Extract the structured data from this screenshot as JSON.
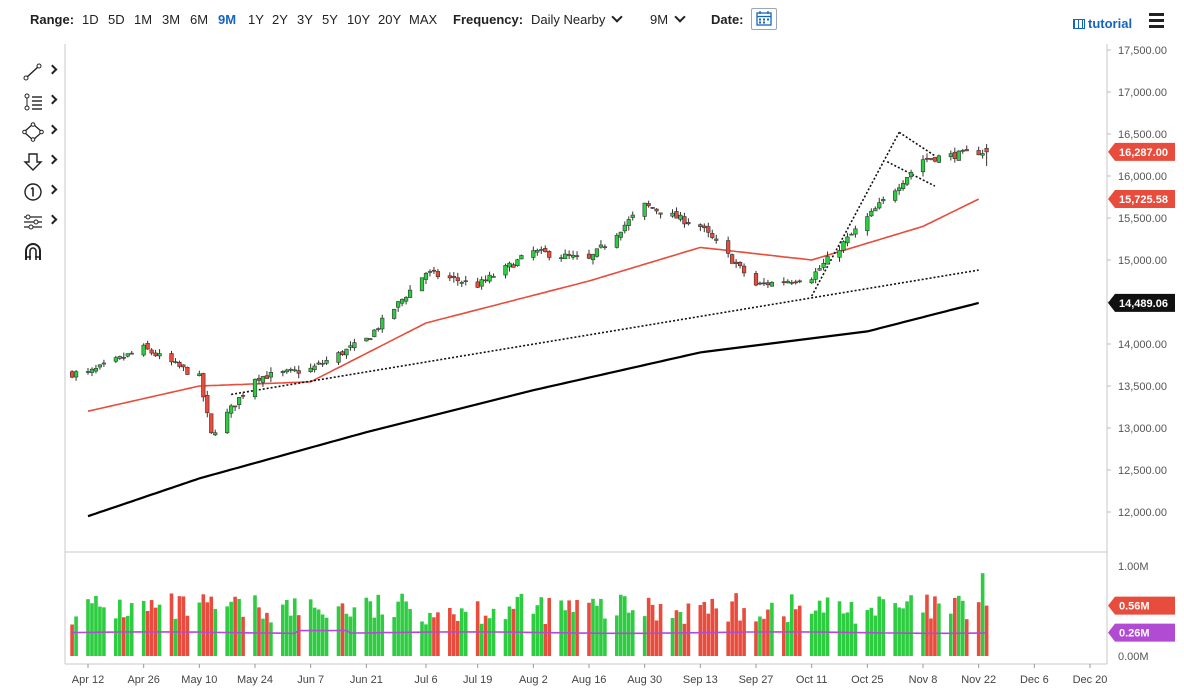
{
  "toolbar": {
    "range_label": "Range:",
    "ranges": [
      "1D",
      "5D",
      "1M",
      "3M",
      "6M",
      "9M",
      "1Y",
      "2Y",
      "3Y",
      "5Y",
      "10Y",
      "20Y",
      "MAX"
    ],
    "active_range": "9M",
    "frequency_label": "Frequency:",
    "frequency_value": "Daily Nearby",
    "period_value": "9M",
    "date_label": "Date:",
    "tutorial_label": "tutorial"
  },
  "drawing_tools": [
    "line-tool-icon",
    "fibonacci-tool-icon",
    "shape-tool-icon",
    "arrow-tool-icon",
    "number-marker-icon",
    "measure-tool-icon",
    "magnet-icon"
  ],
  "chart_data": [
    {
      "type": "candlestick",
      "title": "",
      "xlabel": "",
      "ylabel": "",
      "x_ticks": [
        "Apr 12",
        "Apr 26",
        "May 10",
        "May 24",
        "Jun 7",
        "Jun 21",
        "Jul 6",
        "Jul 19",
        "Aug 2",
        "Aug 16",
        "Aug 30",
        "Sep 13",
        "Sep 27",
        "Oct 11",
        "Oct 25",
        "Nov 8",
        "Nov 22",
        "Dec 6",
        "Dec 20"
      ],
      "y_ticks": [
        "17,500.00",
        "17,000.00",
        "16,500.00",
        "16,000.00",
        "15,500.00",
        "15,000.00",
        "14,500.00",
        "14,000.00",
        "13,500.00",
        "13,000.00",
        "12,500.00",
        "12,000.00"
      ],
      "ylim": [
        11800,
        17500
      ],
      "grid": false,
      "colors": {
        "up": "#2ecc40",
        "down": "#e74c3c",
        "ma_short": "#e74c3c",
        "ma_long": "#000000"
      },
      "ohlc_anchors": {
        "Apr 12": 13650,
        "Apr 26": 13950,
        "May 10": 13600,
        "May 13": 12920,
        "May 24": 13600,
        "Jun 7": 13700,
        "Jun 21": 14050,
        "Jul 6": 14850,
        "Jul 19": 14700,
        "Aug 2": 15100,
        "Aug 16": 15000,
        "Aug 30": 15650,
        "Sep 13": 15400,
        "Sep 27": 14700,
        "Oct 11": 14800,
        "Oct 25": 15500,
        "Nov 8": 16200,
        "Nov 22": 16287
      },
      "price_labels": [
        {
          "value": 16287,
          "text": "16,287.00",
          "color": "#e74c3c"
        },
        {
          "value": 15725.58,
          "text": "15,725.58",
          "color": "#e74c3c"
        },
        {
          "value": 14489.06,
          "text": "14,489.06",
          "color": "#111111"
        }
      ],
      "ma_short": {
        "Apr 12": 13200,
        "May 10": 13500,
        "Jun 7": 13550,
        "Jul 6": 14250,
        "Aug 16": 14750,
        "Sep 13": 15150,
        "Oct 11": 15000,
        "Nov 8": 15400,
        "Nov 22": 15725.58
      },
      "ma_long": {
        "Apr 12": 11950,
        "May 10": 12400,
        "Jun 21": 12950,
        "Aug 2": 13450,
        "Sep 13": 13900,
        "Oct 25": 14150,
        "Nov 22": 14489.06
      },
      "trendlines": [
        {
          "from": [
            "May 18",
            13400
          ],
          "to": [
            "Nov 22",
            14880
          ],
          "style": "dotted"
        },
        {
          "from": [
            "Oct 11",
            14570
          ],
          "to": [
            "Nov 2",
            16520
          ],
          "style": "dotted"
        },
        {
          "from": [
            "Nov 2",
            16520
          ],
          "to": [
            "Nov 11",
            16240
          ],
          "style": "dotted"
        },
        {
          "from": [
            "Oct 30",
            16170
          ],
          "to": [
            "Nov 11",
            15880
          ],
          "style": "dotted"
        }
      ]
    },
    {
      "type": "bar",
      "name": "volume",
      "y_ticks": [
        "1.00M",
        "0.56M",
        "0.26M",
        "0.00M"
      ],
      "ylim": [
        0,
        1.0
      ],
      "price_labels": [
        {
          "value": 0.56,
          "text": "0.56M",
          "color": "#e74c3c"
        },
        {
          "value": 0.26,
          "text": "0.26M",
          "color": "#b24bd4"
        }
      ],
      "avg_line_value": 0.26,
      "avg_color": "#b24bd4"
    }
  ]
}
